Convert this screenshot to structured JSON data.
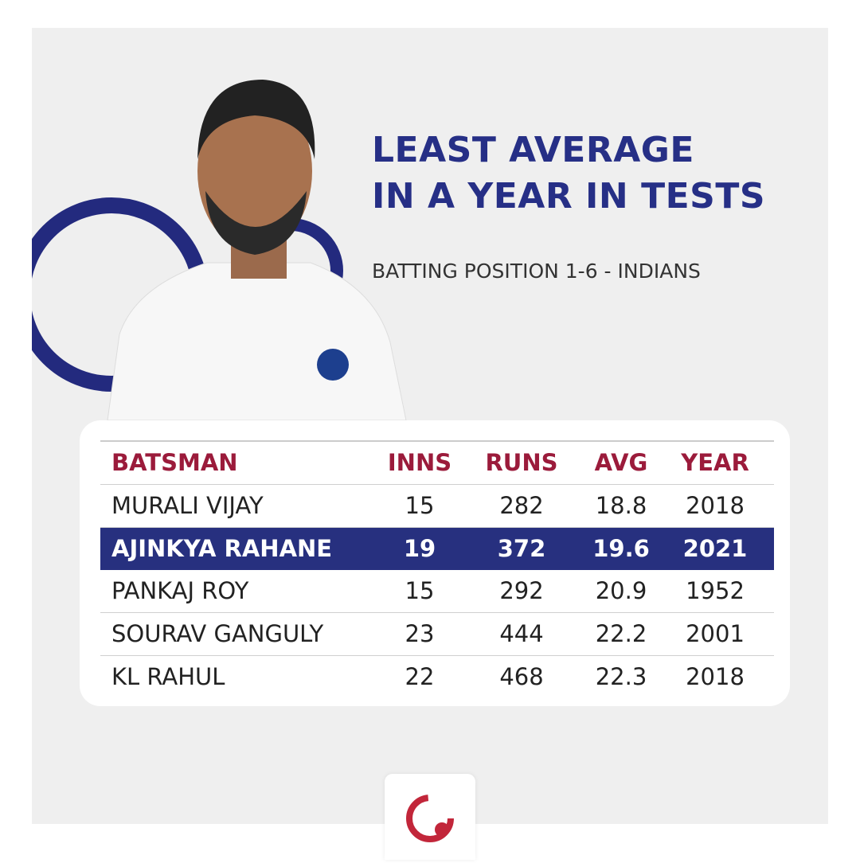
{
  "header": {
    "title_lines": [
      "LEAST AVERAGE",
      "IN A YEAR IN TESTS"
    ],
    "subtitle": "BATTING POSITION 1-6 - INDIANS"
  },
  "table": {
    "columns": [
      "BATSMAN",
      "INNS",
      "RUNS",
      "AVG",
      "YEAR"
    ],
    "rows": [
      [
        "MURALI VIJAY",
        15,
        282,
        18.8,
        2018
      ],
      [
        "AJINKYA RAHANE",
        19,
        372,
        19.6,
        2021
      ],
      [
        "PANKAJ ROY",
        15,
        292,
        20.9,
        1952
      ],
      [
        "SOURAV GANGULY",
        23,
        444,
        22.2,
        2001
      ],
      [
        "KL RAHUL",
        22,
        468,
        22.3,
        2018
      ]
    ],
    "highlight_row": 1
  }
}
